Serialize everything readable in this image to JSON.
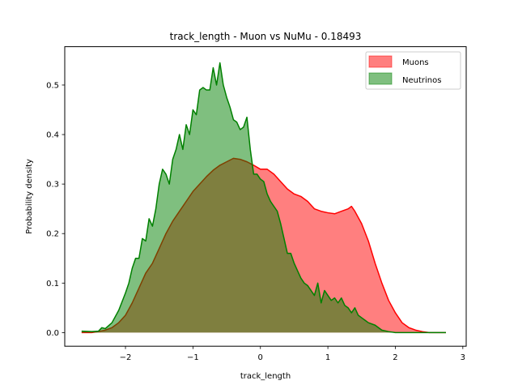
{
  "chart_data": {
    "type": "area",
    "title": "track_length - Muon vs NuMu - 0.18493",
    "xlabel": "track_length",
    "ylabel": "Probability density",
    "xlim": [
      -2.9,
      3.05
    ],
    "ylim": [
      -0.0275,
      0.5775
    ],
    "xticks": [
      -2,
      -1,
      0,
      1,
      2,
      3
    ],
    "xtick_labels": [
      "−2",
      "−1",
      "0",
      "1",
      "2",
      "3"
    ],
    "yticks": [
      0.0,
      0.1,
      0.2,
      0.3,
      0.4,
      0.5
    ],
    "ytick_labels": [
      "0.0",
      "0.1",
      "0.2",
      "0.3",
      "0.4",
      "0.5"
    ],
    "grid": false,
    "legend_position": "top-right",
    "series": [
      {
        "name": "Muons",
        "line_color": "#ff0000",
        "fill_color": "#ff0000",
        "fill_alpha": 0.5,
        "x": [
          -2.65,
          -2.5,
          -2.4,
          -2.3,
          -2.2,
          -2.1,
          -2.0,
          -1.9,
          -1.8,
          -1.7,
          -1.6,
          -1.5,
          -1.4,
          -1.3,
          -1.2,
          -1.1,
          -1.0,
          -0.9,
          -0.8,
          -0.7,
          -0.6,
          -0.5,
          -0.4,
          -0.3,
          -0.2,
          -0.1,
          0.0,
          0.1,
          0.2,
          0.3,
          0.4,
          0.5,
          0.6,
          0.7,
          0.8,
          0.9,
          1.0,
          1.1,
          1.2,
          1.3,
          1.35,
          1.4,
          1.5,
          1.6,
          1.7,
          1.8,
          1.9,
          2.0,
          2.1,
          2.2,
          2.3,
          2.4,
          2.5,
          2.6,
          2.75
        ],
        "values": [
          0.0,
          0.0,
          0.002,
          0.005,
          0.01,
          0.02,
          0.035,
          0.06,
          0.09,
          0.12,
          0.14,
          0.17,
          0.2,
          0.225,
          0.245,
          0.265,
          0.285,
          0.3,
          0.315,
          0.328,
          0.338,
          0.345,
          0.352,
          0.35,
          0.345,
          0.338,
          0.33,
          0.33,
          0.32,
          0.305,
          0.29,
          0.28,
          0.275,
          0.265,
          0.25,
          0.245,
          0.242,
          0.24,
          0.245,
          0.25,
          0.255,
          0.245,
          0.22,
          0.185,
          0.14,
          0.1,
          0.065,
          0.04,
          0.02,
          0.01,
          0.005,
          0.002,
          0.0,
          0.0,
          0.0
        ]
      },
      {
        "name": "Neutrinos",
        "line_color": "#008000",
        "fill_color": "#008000",
        "fill_alpha": 0.5,
        "x": [
          -2.65,
          -2.5,
          -2.4,
          -2.35,
          -2.3,
          -2.2,
          -2.1,
          -2.0,
          -1.95,
          -1.9,
          -1.85,
          -1.8,
          -1.75,
          -1.7,
          -1.65,
          -1.6,
          -1.55,
          -1.5,
          -1.45,
          -1.4,
          -1.35,
          -1.3,
          -1.25,
          -1.2,
          -1.15,
          -1.1,
          -1.05,
          -1.0,
          -0.95,
          -0.9,
          -0.85,
          -0.8,
          -0.75,
          -0.7,
          -0.65,
          -0.6,
          -0.55,
          -0.5,
          -0.45,
          -0.4,
          -0.35,
          -0.3,
          -0.25,
          -0.2,
          -0.15,
          -0.1,
          -0.05,
          0.0,
          0.05,
          0.1,
          0.15,
          0.2,
          0.25,
          0.3,
          0.35,
          0.4,
          0.45,
          0.5,
          0.55,
          0.6,
          0.65,
          0.7,
          0.75,
          0.8,
          0.85,
          0.9,
          0.95,
          1.0,
          1.05,
          1.1,
          1.15,
          1.2,
          1.25,
          1.3,
          1.35,
          1.4,
          1.45,
          1.5,
          1.55,
          1.6,
          1.7,
          1.8,
          1.9,
          2.0,
          2.1,
          2.2,
          2.3,
          2.4,
          2.5,
          2.6,
          2.75
        ],
        "values": [
          0.003,
          0.002,
          0.003,
          0.01,
          0.008,
          0.02,
          0.045,
          0.08,
          0.1,
          0.13,
          0.15,
          0.15,
          0.19,
          0.185,
          0.23,
          0.215,
          0.25,
          0.3,
          0.33,
          0.32,
          0.3,
          0.35,
          0.37,
          0.4,
          0.37,
          0.42,
          0.4,
          0.45,
          0.44,
          0.49,
          0.495,
          0.49,
          0.49,
          0.535,
          0.5,
          0.545,
          0.5,
          0.475,
          0.455,
          0.43,
          0.425,
          0.41,
          0.415,
          0.435,
          0.37,
          0.32,
          0.32,
          0.31,
          0.305,
          0.28,
          0.265,
          0.255,
          0.245,
          0.22,
          0.19,
          0.16,
          0.16,
          0.14,
          0.125,
          0.11,
          0.1,
          0.095,
          0.085,
          0.075,
          0.1,
          0.06,
          0.085,
          0.075,
          0.065,
          0.07,
          0.06,
          0.07,
          0.055,
          0.05,
          0.04,
          0.05,
          0.035,
          0.03,
          0.025,
          0.02,
          0.015,
          0.005,
          0.002,
          0.0,
          0.0,
          0.0,
          0.0,
          0.0,
          0.0,
          0.0,
          0.0
        ]
      }
    ]
  }
}
